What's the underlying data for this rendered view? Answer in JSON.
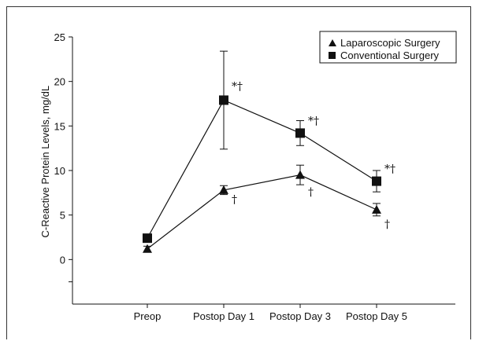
{
  "chart_data": {
    "type": "line",
    "title": "",
    "xlabel": "",
    "ylabel": "C-Reactive Protein Levels, mg/dL",
    "ylim": [
      -5,
      25
    ],
    "yticks": [
      0,
      5,
      10,
      15,
      20,
      25
    ],
    "categories": [
      "Preop",
      "Postop Day 1",
      "Postop Day 3",
      "Postop Day 5"
    ],
    "grid": false,
    "legend_position": "top-right",
    "series": [
      {
        "name": "Laparoscopic Surgery",
        "marker": "triangle",
        "values": [
          1.2,
          7.8,
          9.5,
          5.6
        ],
        "error": [
          0.3,
          0.5,
          1.1,
          0.7
        ]
      },
      {
        "name": "Conventional Surgery",
        "marker": "square",
        "values": [
          2.4,
          17.9,
          14.2,
          8.8
        ],
        "error": [
          0.3,
          5.5,
          1.4,
          1.2
        ]
      }
    ],
    "annotations": [
      {
        "text": "*†",
        "category": "Postop Day 1",
        "value": 19.5,
        "series": "Conventional Surgery"
      },
      {
        "text": "†",
        "category": "Postop Day 1",
        "value": 6.8,
        "series": "Laparoscopic Surgery"
      },
      {
        "text": "*†",
        "category": "Postop Day 3",
        "value": 15.6,
        "series": "Conventional Surgery"
      },
      {
        "text": "†",
        "category": "Postop Day 3",
        "value": 7.6,
        "series": "Laparoscopic Surgery"
      },
      {
        "text": "*†",
        "category": "Postop Day 5",
        "value": 10.2,
        "series": "Conventional Surgery"
      },
      {
        "text": "†",
        "category": "Postop Day 5",
        "value": 4.0,
        "series": "Laparoscopic Surgery"
      }
    ]
  }
}
